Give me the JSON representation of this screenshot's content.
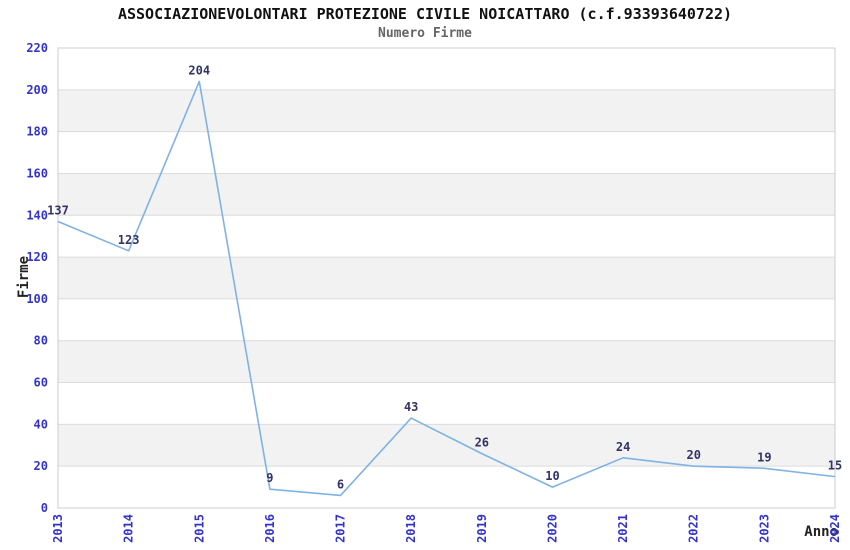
{
  "chart_data": {
    "type": "line",
    "title": "ASSOCIAZIONEVOLONTARI PROTEZIONE CIVILE NOICATTARO (c.f.93393640722)",
    "subtitle": "Numero Firme",
    "xlabel": "Anno",
    "ylabel": "Firme",
    "categories": [
      "2013",
      "2014",
      "2015",
      "2016",
      "2017",
      "2018",
      "2019",
      "2020",
      "2021",
      "2022",
      "2023",
      "2024"
    ],
    "values": [
      137,
      123,
      204,
      9,
      6,
      43,
      26,
      10,
      24,
      20,
      19,
      15
    ],
    "ylim": [
      0,
      220
    ],
    "ytick_step": 20,
    "grid": "horizontal-bands-alternating",
    "legend": "none",
    "data_labels": "shown-above-points",
    "x_tick_rotation": -90,
    "markers": "none",
    "colors": {
      "line": "#7FB2E5",
      "tick_label": "#3333CC",
      "data_label": "#333366",
      "band": "#F2F2F2",
      "gridline": "#DCDCDC",
      "frame": "#CCCCCC",
      "title": "#111111",
      "subtitle": "#666666",
      "axis_title": "#222222",
      "background": "#FFFFFF"
    }
  }
}
